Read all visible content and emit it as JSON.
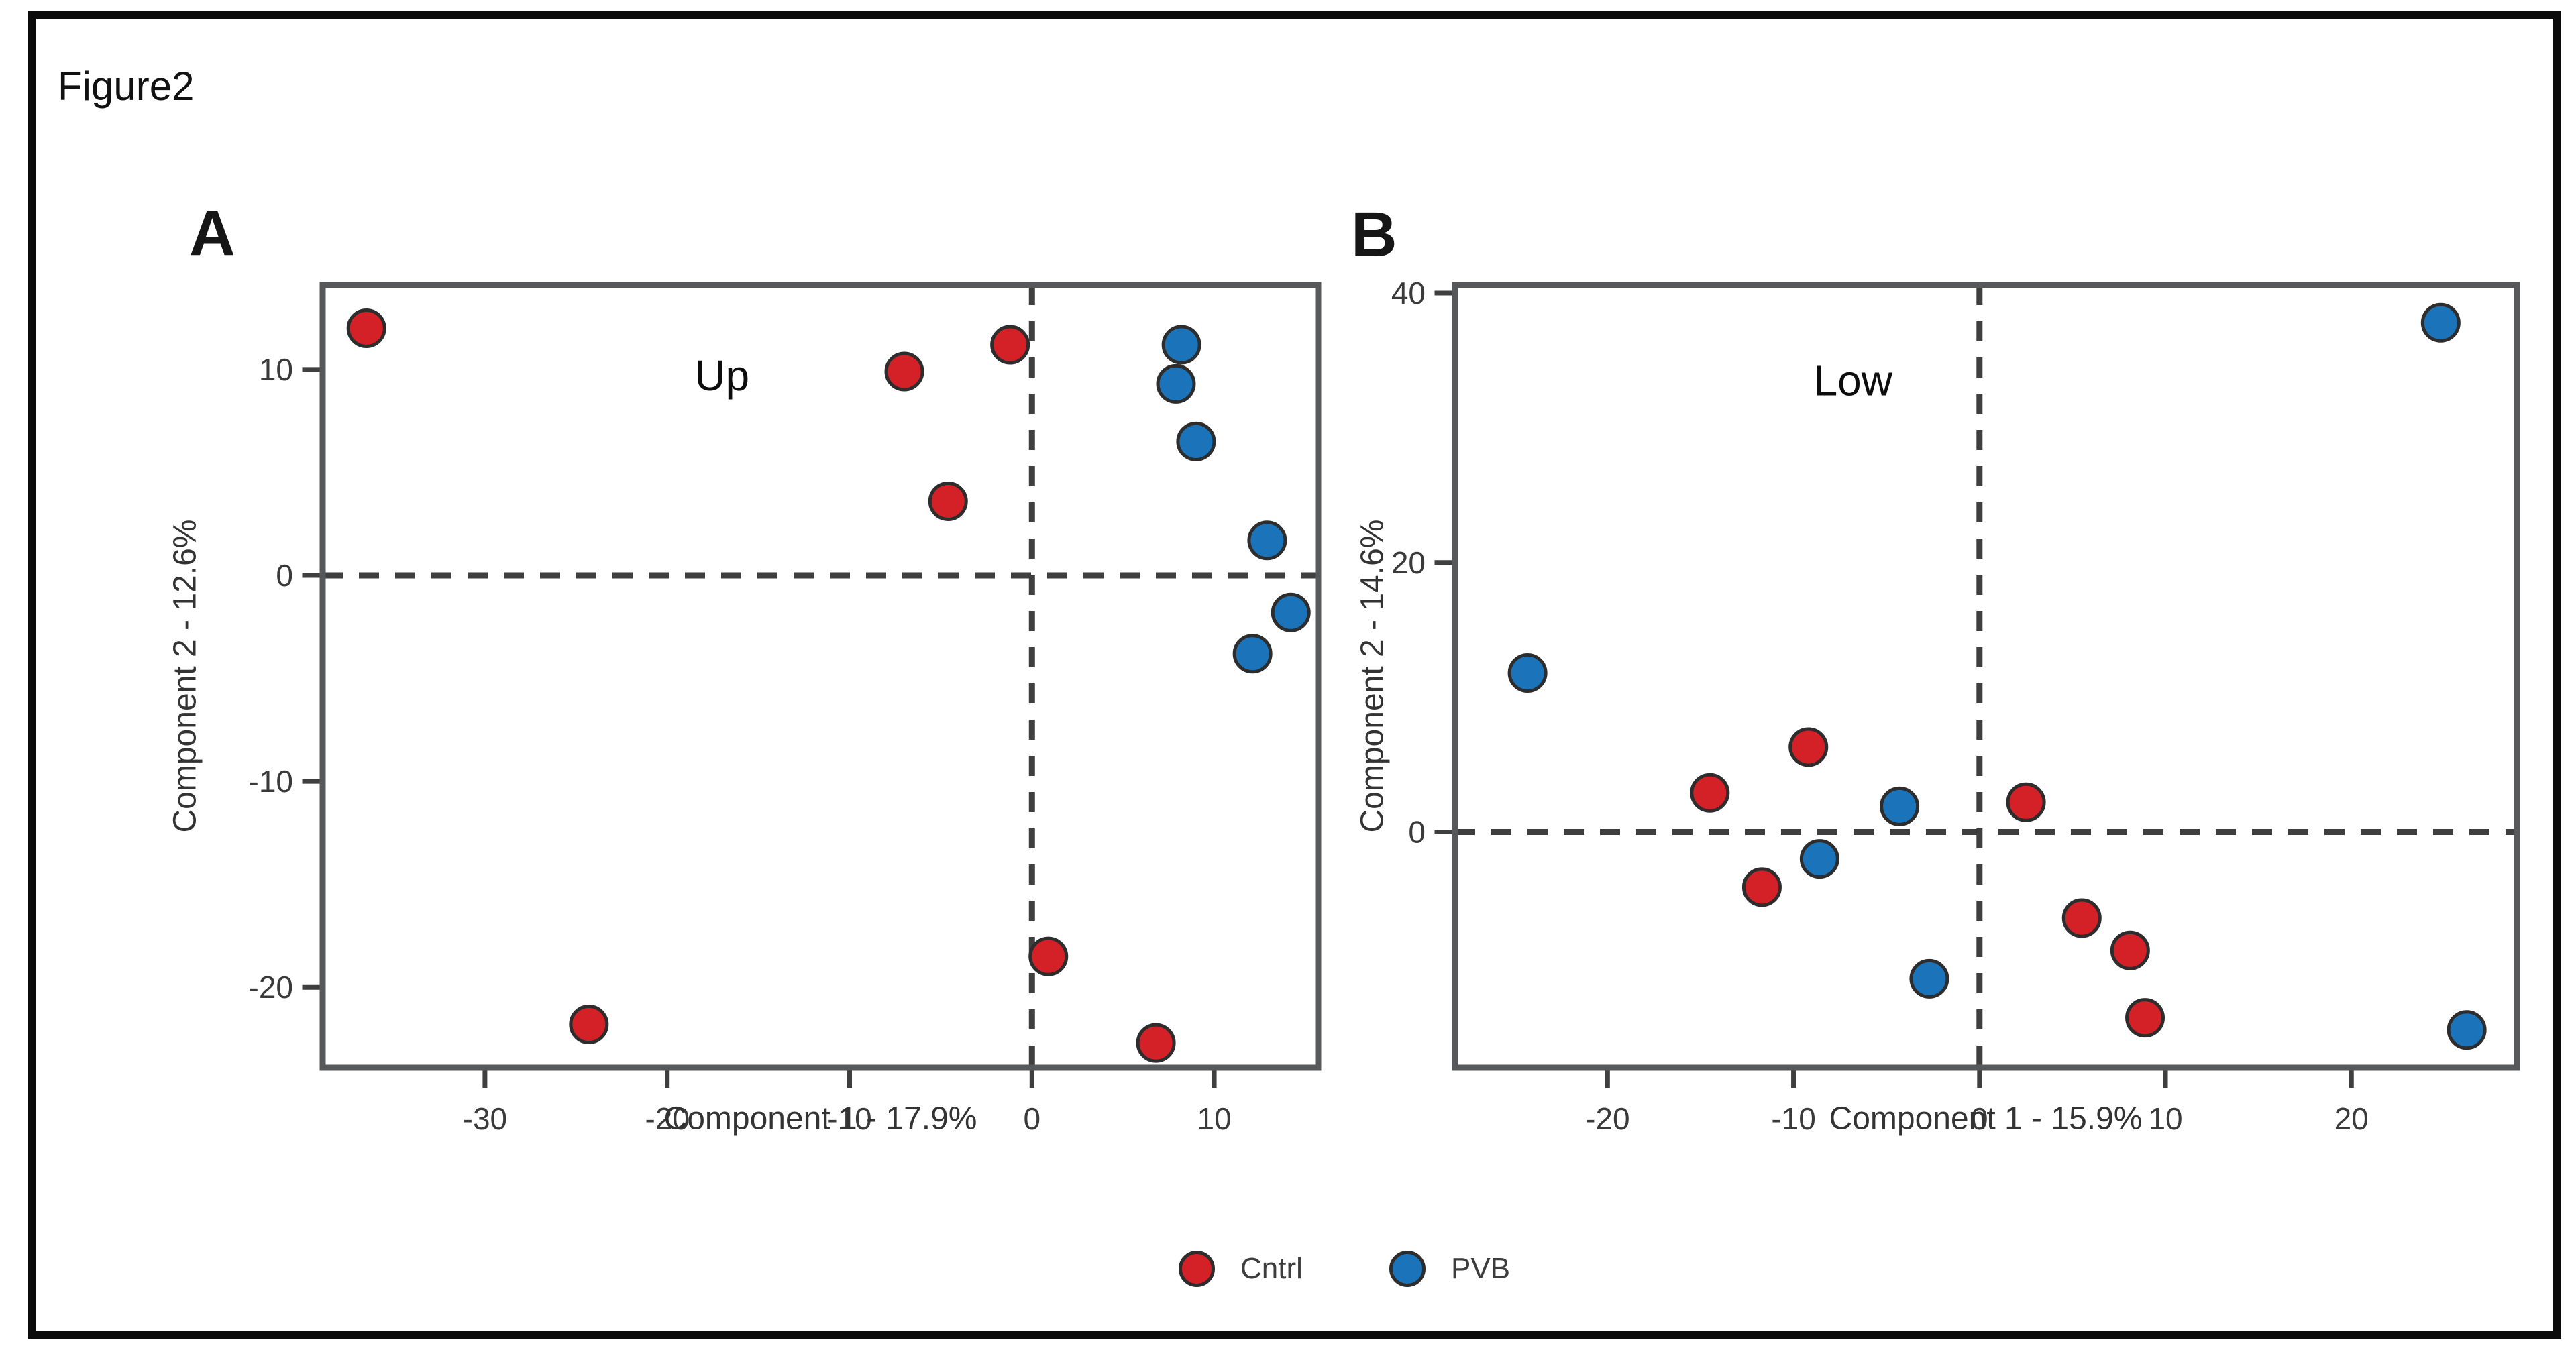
{
  "figure": {
    "title": "Figure2"
  },
  "legend": {
    "position": "bottom-center",
    "items": [
      {
        "label": "Cntrl",
        "color": "#d42127",
        "marker": "circle"
      },
      {
        "label": "PVB",
        "color": "#1b74b9",
        "marker": "circle"
      }
    ]
  },
  "chart_data": [
    {
      "type": "scatter",
      "panel_label": "A",
      "annotation": {
        "text": "Up",
        "x": -17,
        "y": 9.7
      },
      "xlabel": "Component 1 - 17.9%",
      "ylabel": "Component 2 - 12.6%",
      "xlim": [
        -38.9,
        15.7
      ],
      "ylim": [
        -23.9,
        14.1
      ],
      "xticks": [
        -30,
        -20,
        -10,
        0,
        10
      ],
      "yticks": [
        10,
        0,
        -10,
        -20
      ],
      "zero_lines": "dashed",
      "grid": false,
      "legend_position": "figure-bottom",
      "series": [
        {
          "name": "Cntrl",
          "color": "#d42127",
          "points": [
            [
              -36.5,
              12.0
            ],
            [
              -7.0,
              9.9
            ],
            [
              -1.2,
              11.2
            ],
            [
              -4.6,
              3.6
            ],
            [
              0.9,
              -18.5
            ],
            [
              -24.3,
              -21.8
            ],
            [
              6.8,
              -22.7
            ]
          ]
        },
        {
          "name": "PVB",
          "color": "#1b74b9",
          "points": [
            [
              8.2,
              11.2
            ],
            [
              7.9,
              9.3
            ],
            [
              9.0,
              6.5
            ],
            [
              12.9,
              1.7
            ],
            [
              14.2,
              -1.8
            ],
            [
              12.1,
              -3.8
            ]
          ]
        }
      ]
    },
    {
      "type": "scatter",
      "panel_label": "B",
      "annotation": {
        "text": "Low",
        "x": -6.8,
        "y": 33.5
      },
      "xlabel": "Component 1 - 15.9%",
      "ylabel": "Component 2 - 14.6%",
      "xlim": [
        -28.2,
        28.9
      ],
      "ylim": [
        -17.5,
        40.6
      ],
      "xticks": [
        -20,
        -10,
        0,
        10,
        20
      ],
      "yticks": [
        40,
        20,
        0
      ],
      "zero_lines": "dashed",
      "grid": false,
      "legend_position": "figure-bottom",
      "series": [
        {
          "name": "Cntrl",
          "color": "#d42127",
          "points": [
            [
              -9.2,
              6.3
            ],
            [
              -14.5,
              2.9
            ],
            [
              -11.7,
              -4.1
            ],
            [
              2.5,
              2.2
            ],
            [
              5.5,
              -6.4
            ],
            [
              8.1,
              -8.8
            ],
            [
              8.9,
              -13.8
            ]
          ]
        },
        {
          "name": "PVB",
          "color": "#1b74b9",
          "points": [
            [
              24.8,
              37.8
            ],
            [
              -24.3,
              11.8
            ],
            [
              -4.3,
              1.9
            ],
            [
              -8.6,
              -2.0
            ],
            [
              -2.7,
              -10.9
            ],
            [
              26.2,
              -14.7
            ]
          ]
        }
      ]
    }
  ],
  "style": {
    "frame_color": "#57585a",
    "dash_color": "#3f3f3f",
    "tick_color": "#3f3f3f",
    "tick_label_color": "#3a3a3a",
    "axis_label_color": "#333333",
    "annotation_color": "#0d0d0d",
    "point_stroke": "#2d2d2d",
    "border_color": "#0b0b0b"
  }
}
